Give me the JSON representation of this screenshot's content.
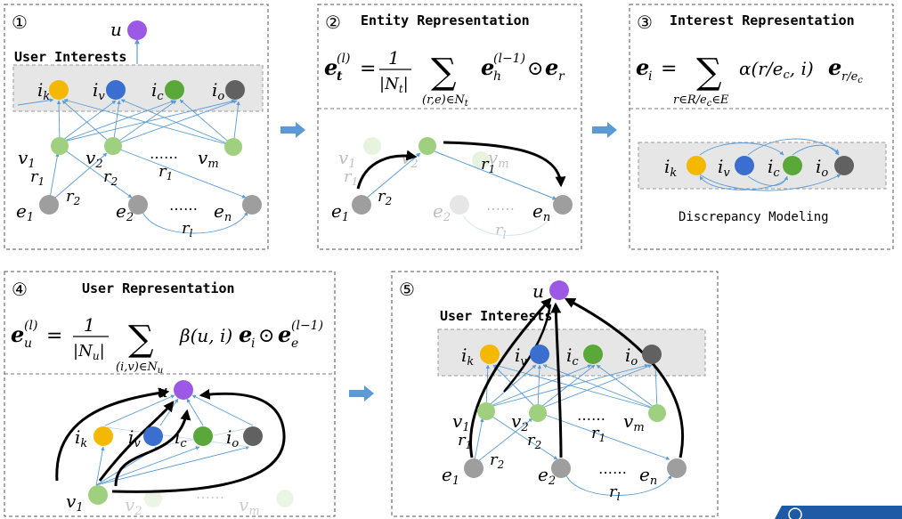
{
  "panels": {
    "p1": {
      "number": "①",
      "heading": "User Interests"
    },
    "p2": {
      "number": "②",
      "heading": "Entity Representation"
    },
    "p3": {
      "number": "③",
      "heading": "Interest Representation",
      "caption": "Discrepancy Modeling"
    },
    "p4": {
      "number": "④",
      "heading": "User Representation"
    },
    "p5": {
      "number": "⑤",
      "heading": "User Interests"
    }
  },
  "labels": {
    "u": "u",
    "ik": "i",
    "ik_sub": "k",
    "iv": "i",
    "iv_sub": "v",
    "ic": "i",
    "ic_sub": "c",
    "io": "i",
    "io_sub": "o",
    "v1": "v",
    "v1_sub": "1",
    "v2": "v",
    "v2_sub": "2",
    "vm": "v",
    "vm_sub": "m",
    "e1": "e",
    "e1_sub": "1",
    "e2": "e",
    "e2_sub": "2",
    "en": "e",
    "en_sub": "n",
    "r1": "r",
    "r1_sub": "1",
    "r2": "r",
    "r2_sub": "2",
    "rl": "r",
    "rl_sub": "l",
    "dots": "……"
  },
  "formulas": {
    "entity": "e_t^(l) = 1/|N_t| Σ_{(r,e)∈N_t} e_h^(l−1) ⊙ e_r",
    "interest": "e_i = Σ_{r∈R/e_c∈E} α(r/e_c, i) e_{r/e_c}",
    "user": "e_u^(l) = 1/|N_u| Σ_{(i,v)∈N_u} β(u,i) e_i ⊙ e_e^(l−1)"
  },
  "colors": {
    "user_node": "#9b59e6",
    "ik": "#f5b800",
    "iv": "#3a6fd0",
    "ic": "#5aa83a",
    "io": "#616161",
    "item": "#9ed07f",
    "entity": "#9e9e9e",
    "edge": "#5b9bd5",
    "band": "#e6e6e6",
    "arrow": "#5b9bd5"
  }
}
